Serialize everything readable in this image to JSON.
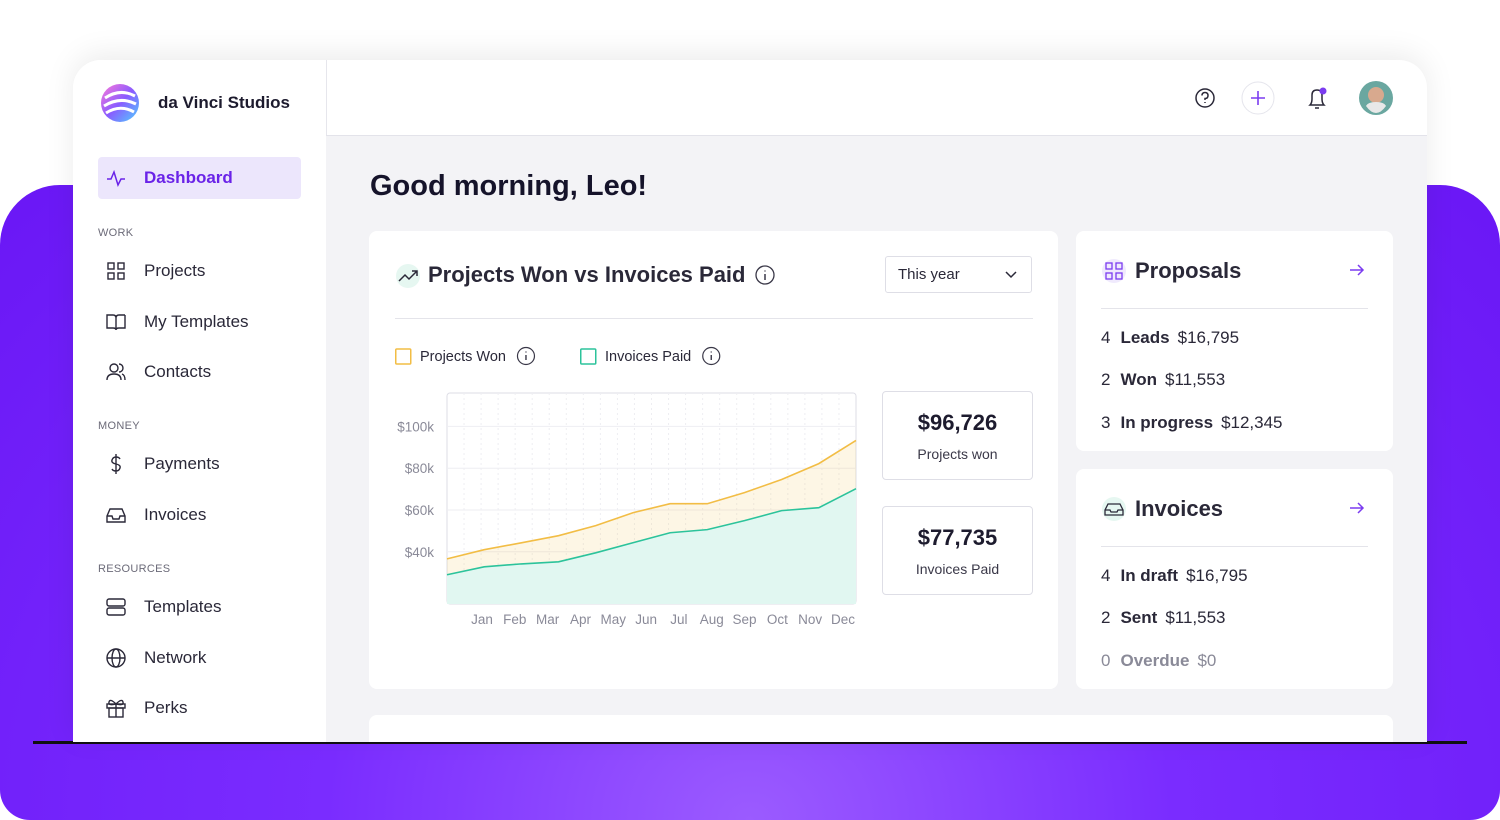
{
  "brand": {
    "name": "da Vinci Studios"
  },
  "sidebar": {
    "active": "Dashboard",
    "sections": [
      {
        "title": "WORK",
        "items": [
          "Projects",
          "My Templates",
          "Contacts"
        ]
      },
      {
        "title": "MONEY",
        "items": [
          "Payments",
          "Invoices"
        ]
      },
      {
        "title": "RESOURCES",
        "items": [
          "Templates",
          "Network",
          "Perks"
        ]
      }
    ]
  },
  "greeting": "Good morning, Leo!",
  "chart_card": {
    "title": "Projects Won vs Invoices Paid",
    "period": "This year",
    "stats": [
      {
        "value": "$96,726",
        "label": "Projects won"
      },
      {
        "value": "$77,735",
        "label": "Invoices Paid"
      }
    ]
  },
  "chart_data": {
    "type": "area",
    "categories": [
      "Jan",
      "Feb",
      "Mar",
      "Apr",
      "May",
      "Jun",
      "Jul",
      "Aug",
      "Sep",
      "Oct",
      "Nov",
      "Dec"
    ],
    "series": [
      {
        "name": "Projects Won",
        "color": "#f2bd45",
        "values": [
          36600,
          41000,
          44300,
          47700,
          52500,
          58700,
          63000,
          63000,
          68300,
          74600,
          82200,
          93300
        ]
      },
      {
        "name": "Invoices Paid",
        "color": "#2cc39b",
        "values": [
          29000,
          32800,
          34200,
          35200,
          39500,
          44300,
          49100,
          50600,
          54900,
          59700,
          61100,
          70200
        ]
      }
    ],
    "ylim": [
      15000,
      116000
    ],
    "yticks": [
      {
        "value": 40000,
        "label": "$40k"
      },
      {
        "value": 60000,
        "label": "$60k"
      },
      {
        "value": 80000,
        "label": "$80k"
      },
      {
        "value": 100000,
        "label": "$100k"
      }
    ],
    "grid": true
  },
  "proposals": {
    "title": "Proposals",
    "rows": [
      {
        "count": 4,
        "label": "Leads",
        "amount": "$16,795"
      },
      {
        "count": 2,
        "label": "Won",
        "amount": "$11,553"
      },
      {
        "count": 3,
        "label": "In progress",
        "amount": "$12,345"
      }
    ]
  },
  "invoices": {
    "title": "Invoices",
    "rows": [
      {
        "count": 4,
        "label": "In draft",
        "amount": "$16,795"
      },
      {
        "count": 2,
        "label": "Sent",
        "amount": "$11,553"
      },
      {
        "count": 0,
        "label": "Overdue",
        "amount": "$0"
      }
    ]
  }
}
